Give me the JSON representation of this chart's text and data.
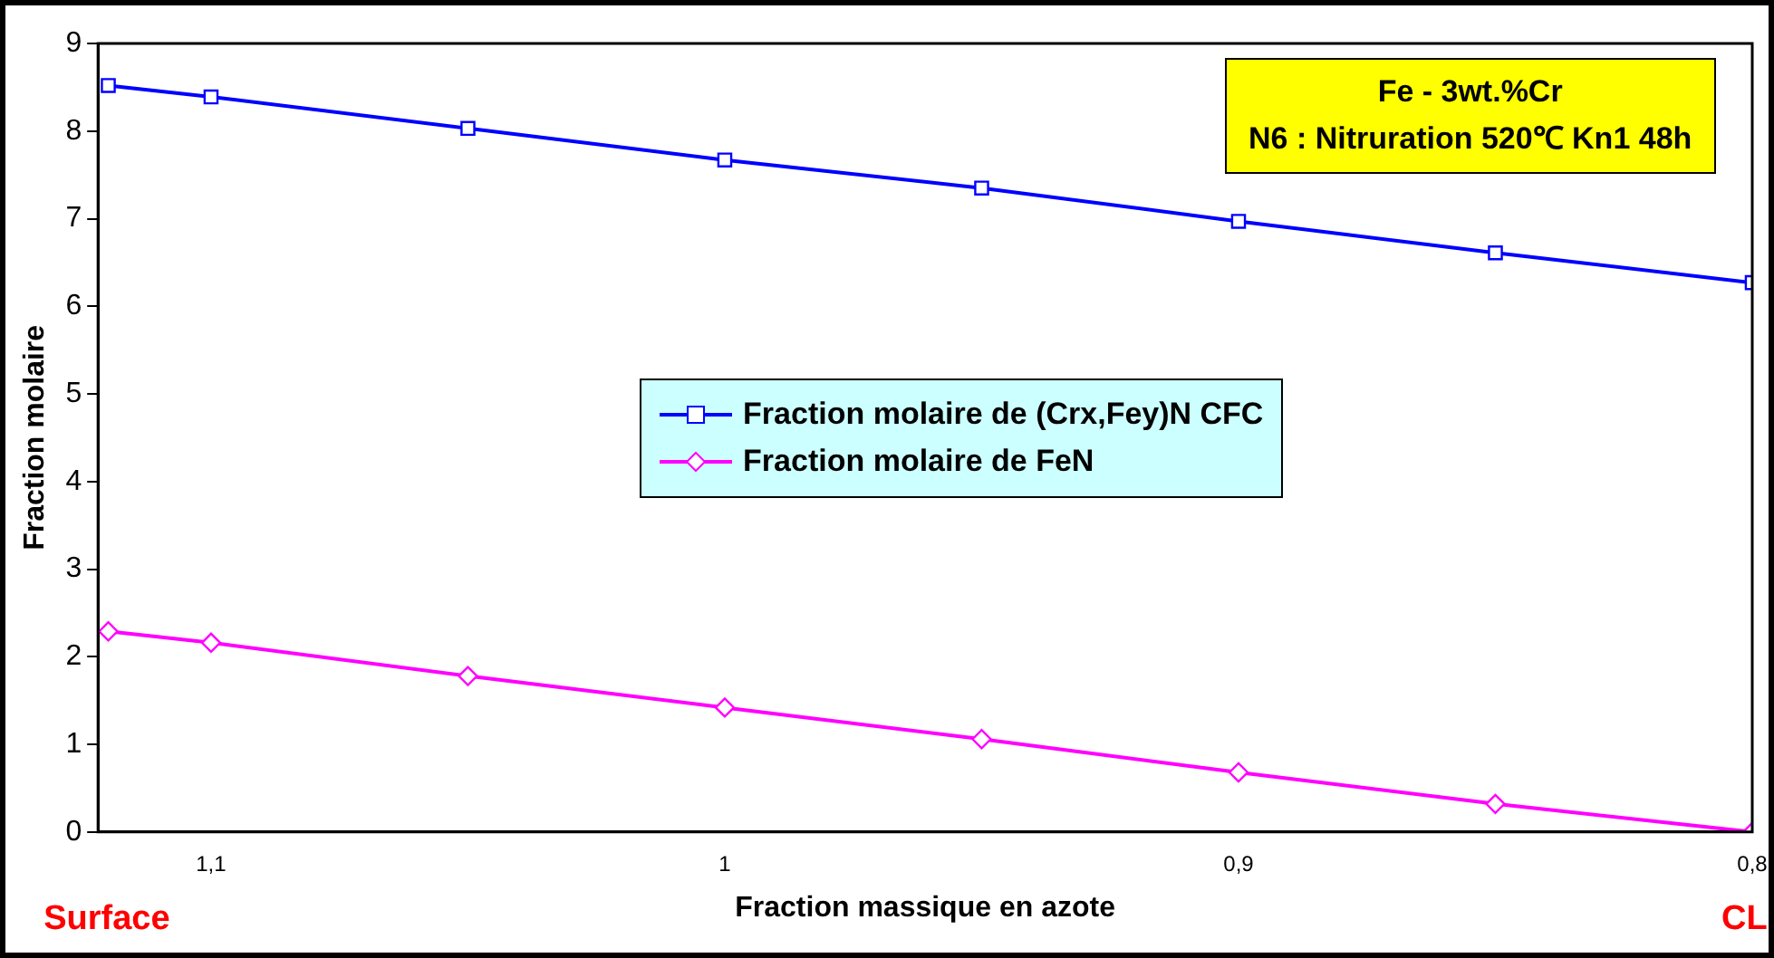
{
  "chart_data": {
    "type": "line",
    "xlabel": "Fraction massique en azote",
    "ylabel": "Fraction molaire",
    "x": [
      1.12,
      1.1,
      1.05,
      1.0,
      0.95,
      0.9,
      0.85,
      0.8
    ],
    "series": [
      {
        "name": "Fraction molaire de (Crx,Fey)N CFC",
        "color": "#0000ff",
        "marker": "square",
        "values": [
          8.52,
          8.39,
          8.03,
          7.67,
          7.35,
          6.97,
          6.61,
          6.27
        ]
      },
      {
        "name": "Fraction molaire de FeN",
        "color": "#ff00ff",
        "marker": "diamond",
        "values": [
          2.29,
          2.16,
          1.78,
          1.42,
          1.06,
          0.68,
          0.32,
          0.0
        ]
      }
    ],
    "xlim": [
      1.122,
      0.8
    ],
    "xticks": [
      {
        "value": 1.1,
        "label": "1,1"
      },
      {
        "value": 1.0,
        "label": "1"
      },
      {
        "value": 0.9,
        "label": "0,9"
      },
      {
        "value": 0.8,
        "label": "0,8"
      }
    ],
    "ylim": [
      0,
      9
    ],
    "yticks": [
      0,
      1,
      2,
      3,
      4,
      5,
      6,
      7,
      8,
      9
    ],
    "grid": false,
    "legend": "center",
    "line_style": "solid",
    "annotations": [
      "Surface",
      "CL",
      "Fe - 3wt.%Cr",
      "N6 : Nitruration 520℃ Kn1 48h"
    ]
  }
}
